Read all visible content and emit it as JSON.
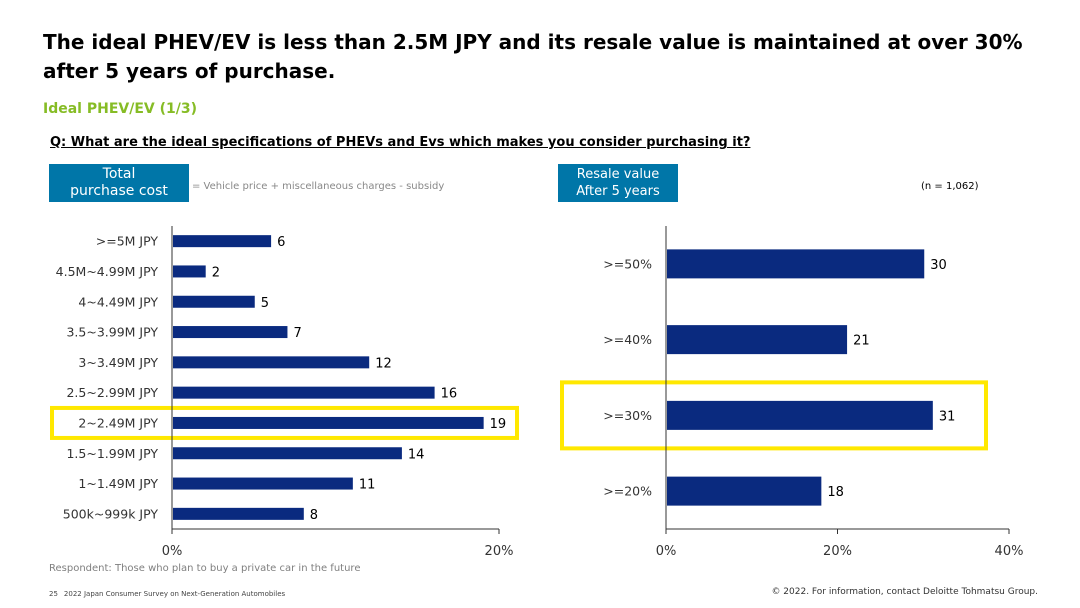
{
  "slide": {
    "headline": "The ideal  PHEV/EV is less than 2.5M JPY and its resale value is maintained at over 30% after 5 years of purchase.",
    "subtitle": "Ideal PHEV/EV (1/3)",
    "question": "Q: What are the ideal specifications of PHEVs and Evs which makes you consider purchasing it?",
    "left_label": [
      "Total",
      "purchase cost"
    ],
    "left_note": "= Vehicle price + miscellaneous charges - subsidy",
    "right_label": [
      "Resale value",
      "After 5 years"
    ],
    "sample_size": "(n = 1,062)",
    "respondent": "Respondent: Those who plan to buy a private car in the future",
    "page_number": "25",
    "survey_name": "2022 Japan Consumer Survey on Next-Generation Automobiles",
    "copyright": "© 2022. For information, contact Deloitte Tohmatsu Group."
  },
  "colors": {
    "bar": "#0A2A7F",
    "highlight": "#FFE800",
    "accent_green": "#86BC25",
    "label_box": "#0076A8"
  },
  "chart_data": [
    {
      "type": "bar",
      "orientation": "horizontal",
      "title": "Total purchase cost",
      "categories": [
        ">=5M JPY",
        "4.5M~4.99M JPY",
        "4~4.49M JPY",
        "3.5~3.99M JPY",
        "3~3.49M JPY",
        "2.5~2.99M JPY",
        "2~2.49M JPY",
        "1.5~1.99M JPY",
        "1~1.49M JPY",
        "500k~999k JPY"
      ],
      "values": [
        6,
        2,
        5,
        7,
        12,
        16,
        19,
        14,
        11,
        8
      ],
      "highlight": "2~2.49M JPY",
      "xlim": [
        0,
        20
      ],
      "xticks": [
        "0%",
        "20%"
      ]
    },
    {
      "type": "bar",
      "orientation": "horizontal",
      "title": "Resale value After 5 years",
      "categories": [
        ">=50%",
        ">=40%",
        ">=30%",
        ">=20%"
      ],
      "values": [
        30,
        21,
        31,
        18
      ],
      "highlight": ">=30%",
      "xlim": [
        0,
        40
      ],
      "xticks": [
        "0%",
        "20%",
        "40%"
      ]
    }
  ]
}
